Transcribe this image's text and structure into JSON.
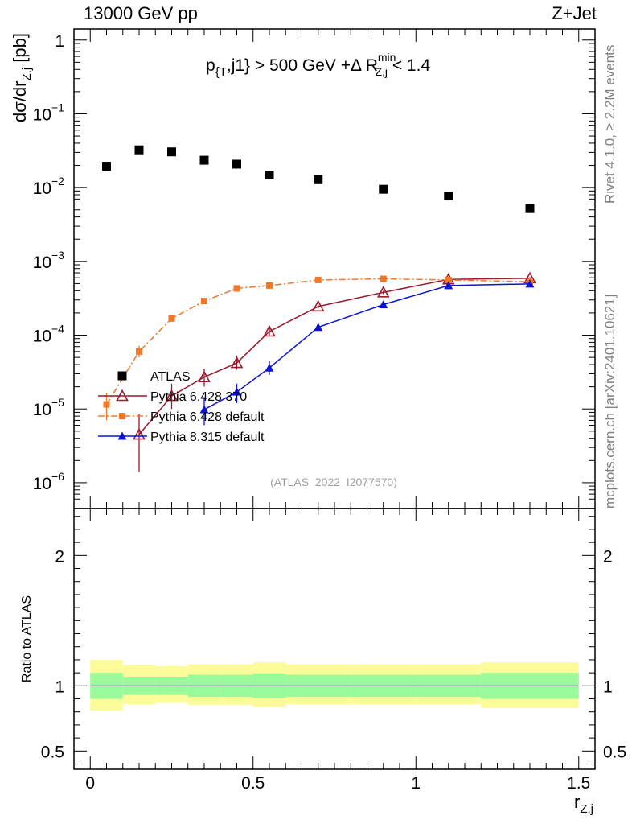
{
  "header": {
    "left": "13000 GeV pp",
    "right": "Z+Jet"
  },
  "side_labels": {
    "rivet": "Rivet 4.1.0, ≥ 2.2M events",
    "mcplots": "mcplots.cern.ch [arXiv:2401.10621]"
  },
  "chart_data": [
    {
      "type": "scatter",
      "title_parts": {
        "pre": "p",
        "sub1": "{T",
        "mid": ",j1} > 500 GeV +Δ R",
        "sup2": "min",
        "sub2": "Z,j",
        "post": " < 1.4"
      },
      "ylabel_parts": {
        "main": "dσ/dr",
        "sub": "Z,j",
        "unit": " [pb]"
      },
      "xlabel_parts": {
        "main": "r",
        "sub": "Z,j"
      },
      "yscale": "log",
      "xlim": [
        -0.05,
        1.55
      ],
      "ylim_log10": [
        -6.35,
        0.15
      ],
      "ytick_labels": [
        "1",
        "10",
        "10",
        "10",
        "10",
        "10",
        "10"
      ],
      "ytick_exponents": [
        "",
        "−1",
        "−2",
        "−3",
        "−4",
        "−5",
        "−6"
      ],
      "watermark": "(ATLAS_2022_I2077570)",
      "series": [
        {
          "name": "ATLAS",
          "color": "#000000",
          "marker": "square",
          "x": [
            0.05,
            0.15,
            0.25,
            0.35,
            0.45,
            0.55,
            0.7,
            0.9,
            1.1,
            1.35
          ],
          "values": [
            0.0195,
            0.0325,
            0.0305,
            0.0235,
            0.0208,
            0.0148,
            0.0128,
            0.0095,
            0.0077,
            0.0052
          ]
        },
        {
          "name": "Pythia 6.428 370",
          "color": "#9a1a2e",
          "marker": "open-triangle",
          "line": "solid",
          "x": [
            0.15,
            0.25,
            0.35,
            0.45,
            0.55,
            0.7,
            0.9,
            1.1,
            1.35
          ],
          "values": [
            4.5e-06,
            1.5e-05,
            2.7e-05,
            4.2e-05,
            0.000112,
            0.000245,
            0.00038,
            0.00057,
            0.00059
          ],
          "err_lo": [
            1.4e-06,
            1e-05,
            2e-05,
            3.4e-05,
            0.0001,
            0.00023,
            0.00036,
            0.00055,
            0.00057
          ],
          "err_hi": [
            8.5e-06,
            2.2e-05,
            3.5e-05,
            5.3e-05,
            0.000125,
            0.00026,
            0.0004,
            0.00059,
            0.00061
          ]
        },
        {
          "name": "Pythia 6.428 default",
          "color": "#f07828",
          "marker": "filled-square",
          "line": "dashdot",
          "x": [
            0.05,
            0.15,
            0.25,
            0.35,
            0.45,
            0.55,
            0.7,
            0.9,
            1.1,
            1.35
          ],
          "values": [
            1.15e-05,
            6e-05,
            0.000168,
            0.00029,
            0.00043,
            0.00047,
            0.00056,
            0.00058,
            0.00056,
            0.00053
          ],
          "err_lo": [
            7e-06,
            5e-05,
            0.00016,
            0.00028,
            0.00042,
            0.00046,
            0.00055,
            0.00057,
            0.00055,
            0.00052
          ],
          "err_hi": [
            1.65e-05,
            7.2e-05,
            0.000176,
            0.0003,
            0.00044,
            0.00048,
            0.00057,
            0.00059,
            0.00057,
            0.00054
          ]
        },
        {
          "name": "Pythia 8.315 default",
          "color": "#0a14d8",
          "marker": "filled-triangle",
          "line": "solid",
          "x": [
            0.35,
            0.45,
            0.55,
            0.7,
            0.9,
            1.1,
            1.35
          ],
          "values": [
            9.8e-06,
            1.7e-05,
            3.6e-05,
            0.000128,
            0.00026,
            0.00047,
            0.000495
          ],
          "err_lo": [
            6e-06,
            1.2e-05,
            2.9e-05,
            0.00012,
            0.00025,
            0.00046,
            0.000485
          ],
          "err_hi": [
            1.45e-05,
            2.2e-05,
            4.5e-05,
            0.000136,
            0.00027,
            0.00048,
            0.000505
          ]
        }
      ]
    },
    {
      "type": "area",
      "ylabel": "Ratio to ATLAS",
      "xlim": [
        -0.05,
        1.55
      ],
      "ylim": [
        0.36,
        2.36
      ],
      "ytick_labels": [
        "2",
        "1",
        "0.5"
      ],
      "xtick_labels": [
        "0",
        "0.5",
        "1",
        "1.5"
      ],
      "bins": [
        [
          0.0,
          0.1
        ],
        [
          0.1,
          0.2
        ],
        [
          0.2,
          0.3
        ],
        [
          0.3,
          0.4
        ],
        [
          0.4,
          0.5
        ],
        [
          0.5,
          0.6
        ],
        [
          0.6,
          0.8
        ],
        [
          0.8,
          1.0
        ],
        [
          1.0,
          1.2
        ],
        [
          1.2,
          1.5
        ]
      ],
      "inner_band_lo": [
        0.9,
        0.93,
        0.93,
        0.915,
        0.915,
        0.905,
        0.915,
        0.915,
        0.915,
        0.9
      ],
      "inner_band_hi": [
        1.1,
        1.07,
        1.07,
        1.085,
        1.085,
        1.095,
        1.085,
        1.085,
        1.085,
        1.1
      ],
      "outer_band_lo": [
        0.81,
        0.86,
        0.87,
        0.855,
        0.855,
        0.84,
        0.86,
        0.86,
        0.86,
        0.83
      ],
      "outer_band_hi": [
        1.2,
        1.16,
        1.15,
        1.165,
        1.165,
        1.18,
        1.165,
        1.165,
        1.165,
        1.18
      ],
      "inner_color": "#9afa9a",
      "outer_color": "#fbfb9a",
      "reference": 1
    }
  ]
}
